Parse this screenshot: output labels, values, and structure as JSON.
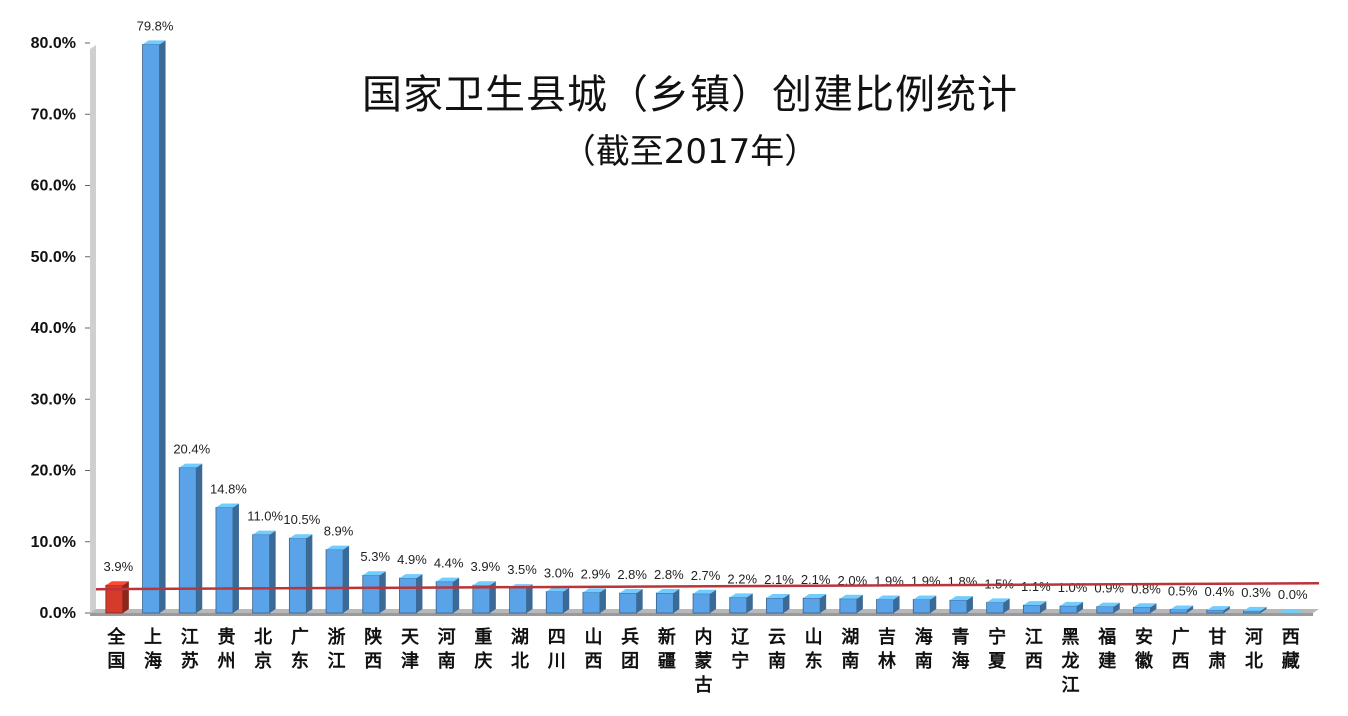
{
  "chart_data": {
    "type": "bar",
    "title": "国家卫生县城（乡镇）创建比例统计",
    "subtitle": "（截至2017年）",
    "ylim": [
      0,
      80
    ],
    "yticks": [
      "0.0%",
      "10.0%",
      "20.0%",
      "30.0%",
      "40.0%",
      "50.0%",
      "60.0%",
      "70.0%",
      "80.0%"
    ],
    "categories": [
      "全国",
      "上海",
      "江苏",
      "贵州",
      "北京",
      "广东",
      "浙江",
      "陕西",
      "天津",
      "河南",
      "重庆",
      "湖北",
      "四川",
      "山西",
      "兵团",
      "新疆",
      "内蒙古",
      "辽宁",
      "云南",
      "山东",
      "湖南",
      "吉林",
      "海南",
      "青海",
      "宁夏",
      "江西",
      "黑龙江",
      "福建",
      "安徽",
      "广西",
      "甘肃",
      "河北",
      "西藏"
    ],
    "values": [
      3.9,
      79.8,
      20.4,
      14.8,
      11.0,
      10.5,
      8.9,
      5.3,
      4.9,
      4.4,
      3.9,
      3.5,
      3.0,
      2.9,
      2.8,
      2.8,
      2.7,
      2.2,
      2.1,
      2.1,
      2.0,
      1.9,
      1.9,
      1.8,
      1.5,
      1.1,
      1.0,
      0.9,
      0.8,
      0.5,
      0.4,
      0.3,
      0.0
    ],
    "labels": [
      "3.9%",
      "79.8%",
      "20.4%",
      "14.8%",
      "11.0%",
      "10.5%",
      "8.9%",
      "5.3%",
      "4.9%",
      "4.4%",
      "3.9%",
      "3.5%",
      "3.0%",
      "2.9%",
      "2.8%",
      "2.8%",
      "2.7%",
      "2.2%",
      "2.1%",
      "2.1%",
      "2.0%",
      "1.9%",
      "1.9%",
      "1.8%",
      "1.5%",
      "1.1%",
      "1.0%",
      "0.9%",
      "0.8%",
      "0.5%",
      "0.4%",
      "0.3%",
      "0.0%"
    ],
    "reference_line": {
      "value": 3.9
    },
    "grid": false,
    "legend": "none"
  },
  "colors": {
    "national_bar": "#d63a2a",
    "province_bar": "#5aa3e8",
    "reference_line": "#b8353a",
    "floor": "#b8b8b8"
  }
}
